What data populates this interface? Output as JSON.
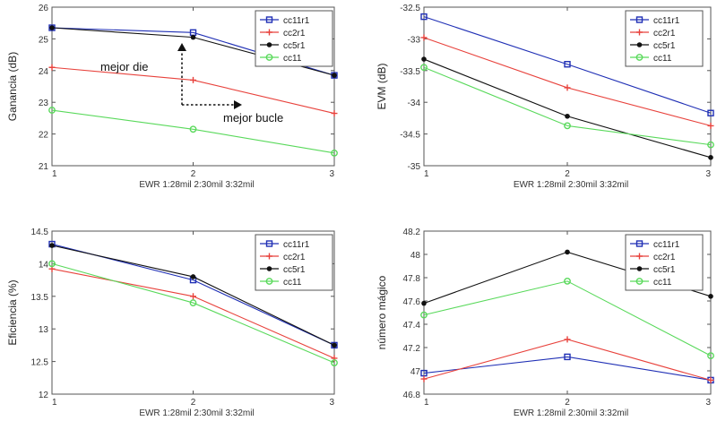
{
  "chart_data": [
    {
      "type": "line",
      "x": [
        1,
        2,
        3
      ],
      "xticks": [
        "1",
        "2",
        "3"
      ],
      "xlabel": "EWR  1:28mil  2:30mil  3:32mil",
      "ylabel": "Ganancia (dB)",
      "ylim": [
        21,
        26
      ],
      "yticks": [
        "21",
        "22",
        "23",
        "24",
        "25",
        "26"
      ],
      "legend": "top-right",
      "series": [
        {
          "name": "cc11r1",
          "color": "#1f2fb5",
          "marker": "square",
          "values": [
            25.35,
            25.2,
            23.85
          ]
        },
        {
          "name": "cc2r1",
          "color": "#e8423c",
          "marker": "plus",
          "values": [
            24.1,
            23.7,
            22.65
          ]
        },
        {
          "name": "cc5r1",
          "color": "#111111",
          "marker": "dot",
          "values": [
            25.35,
            25.05,
            23.85
          ]
        },
        {
          "name": "cc11",
          "color": "#59d95b",
          "marker": "circle",
          "values": [
            22.75,
            22.15,
            21.4
          ]
        }
      ],
      "annotations": [
        {
          "text": "mejor die"
        },
        {
          "text": "mejor bucle"
        }
      ]
    },
    {
      "type": "line",
      "x": [
        1,
        2,
        3
      ],
      "xticks": [
        "1",
        "2",
        "3"
      ],
      "xlabel": "EWR  1:28mil  2:30mil  3:32mil",
      "ylabel": "EVM (dB)",
      "ylim": [
        -35,
        -32.5
      ],
      "yticks": [
        "-32.5",
        "-33",
        "-33.5",
        "-34",
        "-34.5",
        "-35"
      ],
      "legend": "top-right",
      "series": [
        {
          "name": "cc11r1",
          "color": "#1f2fb5",
          "marker": "square",
          "values": [
            -32.65,
            -33.4,
            -34.17
          ]
        },
        {
          "name": "cc2r1",
          "color": "#e8423c",
          "marker": "plus",
          "values": [
            -32.98,
            -33.77,
            -34.37
          ]
        },
        {
          "name": "cc5r1",
          "color": "#111111",
          "marker": "dot",
          "values": [
            -33.32,
            -34.22,
            -34.87
          ]
        },
        {
          "name": "cc11",
          "color": "#59d95b",
          "marker": "circle",
          "values": [
            -33.45,
            -34.37,
            -34.67
          ]
        }
      ]
    },
    {
      "type": "line",
      "x": [
        1,
        2,
        3
      ],
      "xticks": [
        "1",
        "2",
        "3"
      ],
      "xlabel": "EWR  1:28mil  2:30mil  3:32mil",
      "ylabel": "Eficiencia (%)",
      "ylim": [
        12,
        14.5
      ],
      "yticks": [
        "12",
        "12.5",
        "13",
        "13.5",
        "14",
        "14.5"
      ],
      "legend": "top-right",
      "series": [
        {
          "name": "cc11r1",
          "color": "#1f2fb5",
          "marker": "square",
          "values": [
            14.3,
            13.75,
            12.75
          ]
        },
        {
          "name": "cc2r1",
          "color": "#e8423c",
          "marker": "plus",
          "values": [
            13.92,
            13.5,
            12.55
          ]
        },
        {
          "name": "cc5r1",
          "color": "#111111",
          "marker": "dot",
          "values": [
            14.28,
            13.8,
            12.75
          ]
        },
        {
          "name": "cc11",
          "color": "#59d95b",
          "marker": "circle",
          "values": [
            14.0,
            13.4,
            12.48
          ]
        }
      ]
    },
    {
      "type": "line",
      "x": [
        1,
        2,
        3
      ],
      "xticks": [
        "1",
        "2",
        "3"
      ],
      "xlabel": "EWR  1:28mil  2:30mil  3:32mil",
      "ylabel": "número mágico",
      "ylim": [
        46.8,
        48.2
      ],
      "yticks": [
        "46.8",
        "47",
        "47.2",
        "47.4",
        "47.6",
        "47.8",
        "48",
        "48.2"
      ],
      "legend": "top-right",
      "series": [
        {
          "name": "cc11r1",
          "color": "#1f2fb5",
          "marker": "square",
          "values": [
            46.98,
            47.12,
            46.92
          ]
        },
        {
          "name": "cc2r1",
          "color": "#e8423c",
          "marker": "plus",
          "values": [
            46.93,
            47.27,
            46.92
          ]
        },
        {
          "name": "cc5r1",
          "color": "#111111",
          "marker": "dot",
          "values": [
            47.58,
            48.02,
            47.64
          ]
        },
        {
          "name": "cc11",
          "color": "#59d95b",
          "marker": "circle",
          "values": [
            47.48,
            47.77,
            47.13
          ]
        }
      ]
    }
  ]
}
